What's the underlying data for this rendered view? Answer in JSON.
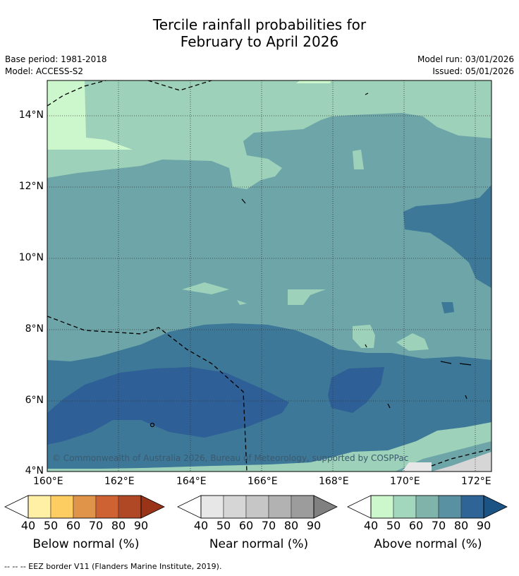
{
  "title": {
    "line1": "Tercile rainfall probabilities for",
    "line2": "February to April 2026"
  },
  "meta": {
    "base_period": "Base period: 1981-2018",
    "model": "Model: ACCESS-S2",
    "model_run": "Model run: 03/01/2026",
    "issued": "Issued: 05/01/2026"
  },
  "map": {
    "lat_labels": [
      "14°N",
      "12°N",
      "10°N",
      "8°N",
      "6°N",
      "4°N"
    ],
    "lon_labels": [
      "160°E",
      "162°E",
      "164°E",
      "166°E",
      "168°E",
      "170°E",
      "172°E"
    ],
    "copyright": "© Commonwealth of Australia 2026, Bureau of Meteorology, supported by COSPPac",
    "colors": {
      "above_50": "#9dd1b9",
      "above_60": "#6da5a8",
      "above_70": "#3d7898",
      "above_80": "#2e5f96",
      "above_40": "#ccf7cc"
    }
  },
  "colorbars": [
    {
      "label": "Below normal (%)",
      "ticks": [
        "40",
        "50",
        "60",
        "70",
        "80",
        "90"
      ],
      "colors": [
        "#fff0a6",
        "#fecd62",
        "#e0944a",
        "#cf6232",
        "#b04826",
        "#993418"
      ]
    },
    {
      "label": "Near normal (%)",
      "ticks": [
        "40",
        "50",
        "60",
        "70",
        "80",
        "90"
      ],
      "colors": [
        "#e7e7e7",
        "#d6d6d6",
        "#c6c6c6",
        "#b2b2b2",
        "#9c9c9c",
        "#808080"
      ]
    },
    {
      "label": "Above normal (%)",
      "ticks": [
        "40",
        "50",
        "60",
        "70",
        "80",
        "90"
      ],
      "colors": [
        "#ccf7cc",
        "#a2d6bd",
        "#80b4ab",
        "#5990a2",
        "#2e6496",
        "#1c5385"
      ]
    }
  ],
  "footer": "--  --  -- EEZ border V11 (Flanders Marine Institute, 2019)."
}
